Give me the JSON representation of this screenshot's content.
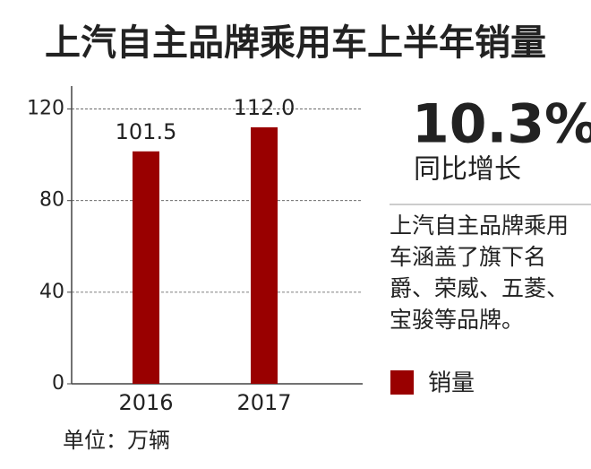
{
  "chart_data": {
    "type": "bar",
    "title": "上汽自主品牌乘用车上半年销量",
    "categories": [
      "2016",
      "2017"
    ],
    "series": [
      {
        "name": "销量",
        "color": "#990000",
        "values": [
          101.5,
          112
        ],
        "value_labels": [
          "101.5",
          "112.0"
        ]
      }
    ],
    "ylim": [
      0,
      130
    ],
    "yticks": [
      0,
      40,
      80,
      120
    ],
    "grid": true,
    "legend": "right",
    "highlight": "10.3%",
    "highlight_caption": "同比增长",
    "description": "上汽自主品牌乘用车涵盖了旗下名爵、荣威、五菱、宝骏等品牌。",
    "unit_note": "单位：万辆"
  }
}
